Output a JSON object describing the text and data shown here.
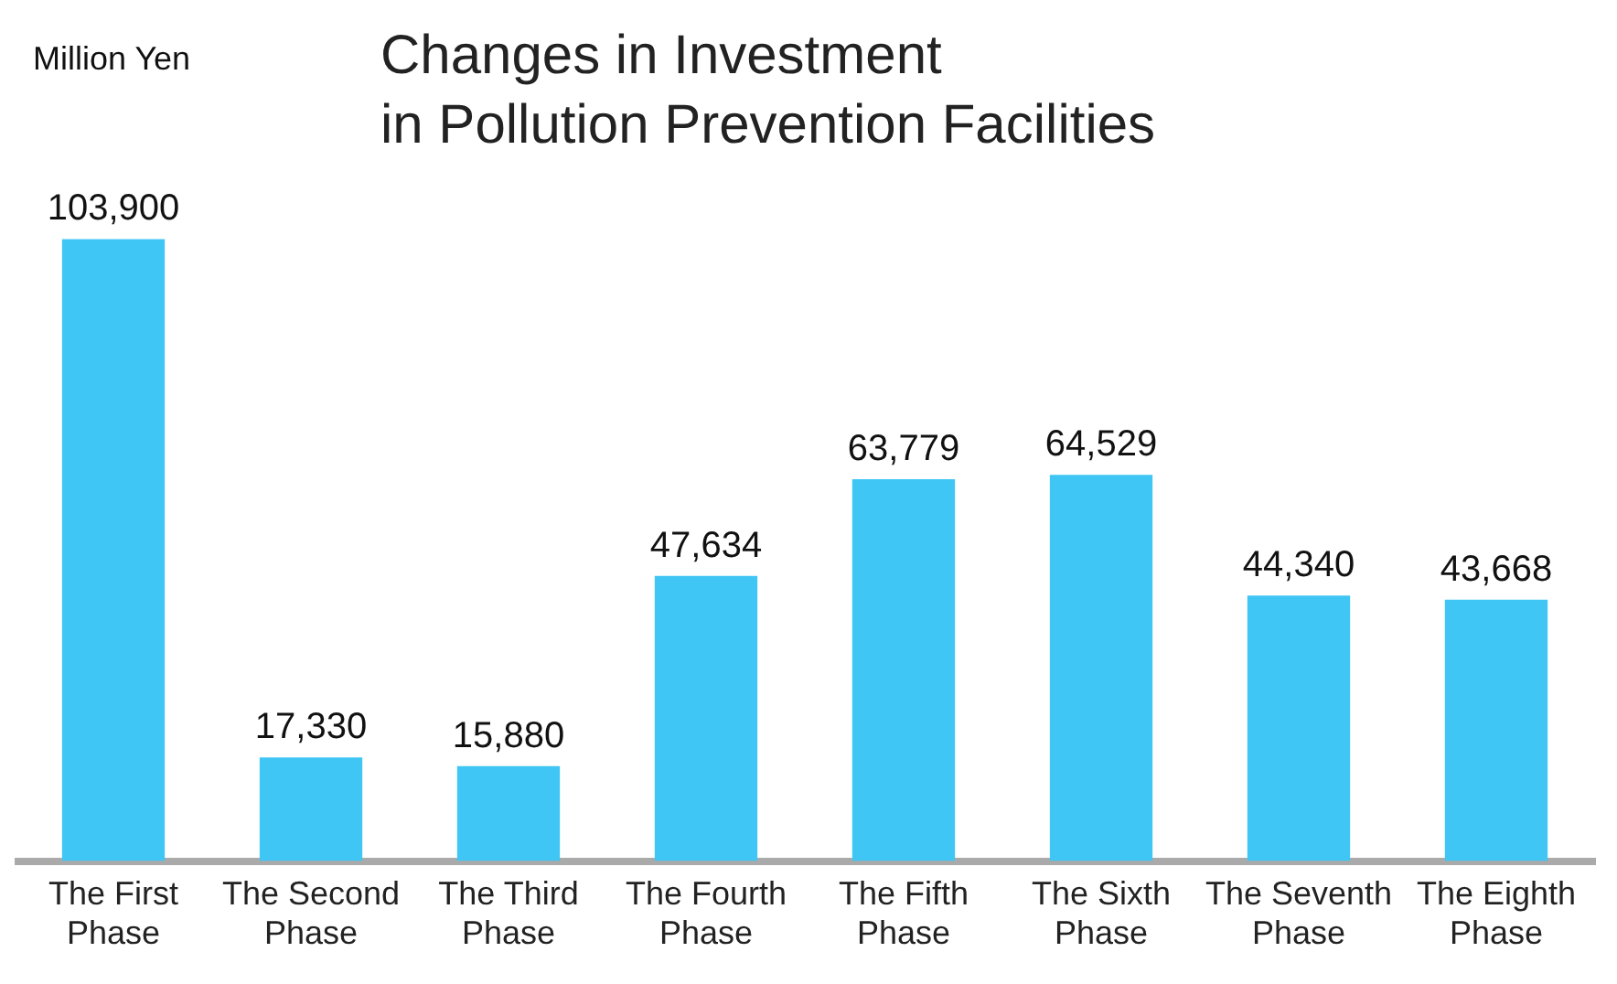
{
  "chart_data": {
    "type": "bar",
    "title": "Changes in Investment\nin Pollution Prevention Facilities",
    "annotations": [
      "Million Yen"
    ],
    "value_labels": [
      "103,900",
      "17,330",
      "15,880",
      "47,634",
      "63,779",
      "64,529",
      "44,340",
      "43,668"
    ],
    "categories": [
      "The First Phase",
      "The Second Phase",
      "The Third Phase",
      "The Fourth Phase",
      "The Fifth Phase",
      "The Sixth Phase",
      "The Seventh Phase",
      "The Eighth Phase"
    ],
    "values": [
      103900,
      17330,
      15880,
      47634,
      63779,
      64529,
      44340,
      43668
    ],
    "color": "#40c6f4",
    "grid": false,
    "legend": false
  }
}
